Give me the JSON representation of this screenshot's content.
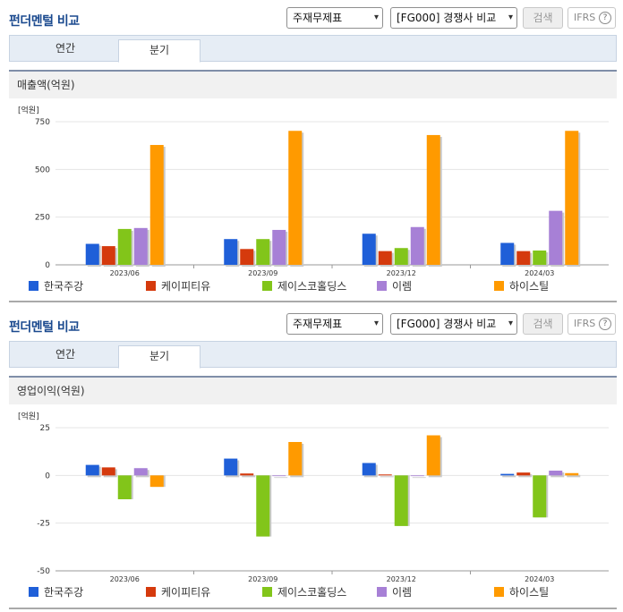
{
  "sections": [
    {
      "title": "펀더멘털 비교",
      "report_select": "주재무제표",
      "peer_select": "[FG000] 경쟁사 비교",
      "search_label": "검색",
      "ifrs_label": "IFRS",
      "help_glyph": "?",
      "tabs": [
        "연간",
        "분기"
      ],
      "active_tab": "분기",
      "panel_title": "매출액(억원)",
      "unit_label": "[억원]"
    },
    {
      "title": "펀더멘털 비교",
      "report_select": "주재무제표",
      "peer_select": "[FG000] 경쟁사 비교",
      "search_label": "검색",
      "ifrs_label": "IFRS",
      "help_glyph": "?",
      "tabs": [
        "연간",
        "분기"
      ],
      "active_tab": "분기",
      "panel_title": "영업이익(억원)",
      "unit_label": "[억원]"
    }
  ],
  "chart_data": [
    {
      "type": "bar",
      "title": "매출액(억원)",
      "ylabel": "[억원]",
      "categories": [
        "2023/06",
        "2023/09",
        "2023/12",
        "2024/03"
      ],
      "ylim": [
        0,
        750
      ],
      "yticks": [
        0,
        250,
        500,
        750
      ],
      "grid": true,
      "legend": "bottom",
      "series": [
        {
          "name": "한국주강",
          "color": "#1f5fd8",
          "values": [
            110,
            135,
            163,
            115
          ]
        },
        {
          "name": "케이피티유",
          "color": "#d53a0d",
          "values": [
            98,
            83,
            72,
            72
          ]
        },
        {
          "name": "제이스코홀딩스",
          "color": "#82c51a",
          "values": [
            188,
            135,
            88,
            75
          ]
        },
        {
          "name": "이렘",
          "color": "#a780d6",
          "values": [
            193,
            183,
            198,
            283
          ]
        },
        {
          "name": "하이스틸",
          "color": "#ff9a00",
          "values": [
            628,
            702,
            680,
            702
          ]
        }
      ]
    },
    {
      "type": "bar",
      "title": "영업이익(억원)",
      "ylabel": "[억원]",
      "categories": [
        "2023/06",
        "2023/09",
        "2023/12",
        "2024/03"
      ],
      "ylim": [
        -50,
        25
      ],
      "yticks": [
        -50,
        -25,
        0,
        25
      ],
      "grid": true,
      "legend": "bottom",
      "series": [
        {
          "name": "한국주강",
          "color": "#1f5fd8",
          "values": [
            5.5,
            8.8,
            6.5,
            0.8
          ]
        },
        {
          "name": "케이피티유",
          "color": "#d53a0d",
          "values": [
            4.2,
            1.0,
            0.5,
            1.5
          ]
        },
        {
          "name": "제이스코홀딩스",
          "color": "#82c51a",
          "values": [
            -12.5,
            -32,
            -26.5,
            -22
          ]
        },
        {
          "name": "이렘",
          "color": "#a780d6",
          "values": [
            3.8,
            0,
            0,
            2.5
          ]
        },
        {
          "name": "하이스틸",
          "color": "#ff9a00",
          "values": [
            -6,
            17.5,
            21,
            1.2
          ]
        }
      ]
    }
  ]
}
